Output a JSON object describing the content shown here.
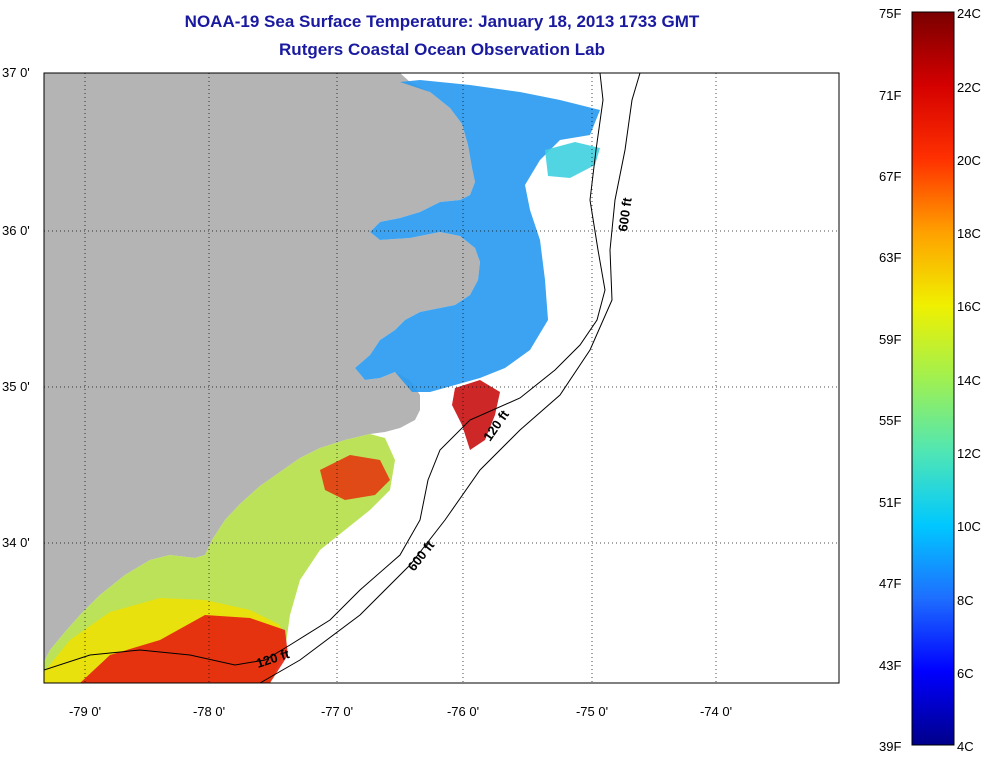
{
  "header": {
    "title": "NOAA-19 Sea Surface Temperature:  January 18, 2013 1733 GMT",
    "subtitle": "Rutgers Coastal Ocean Observation Lab"
  },
  "map": {
    "lat_labels": [
      "37 0'",
      "36 0'",
      "35 0'",
      "34 0'"
    ],
    "lon_labels": [
      "-79 0'",
      "-78 0'",
      "-77 0'",
      "-76 0'",
      "-75 0'",
      "-74 0'"
    ],
    "contour_labels": {
      "c600_north": "600 ft",
      "c600_south": "600 ft",
      "c120_north": "120 ft",
      "c120_south": "120 ft"
    },
    "colors": {
      "land": "#b4b4b4",
      "cloud": "#ffffff"
    }
  },
  "colorbar": {
    "fahrenheit_labels": [
      "75F",
      "71F",
      "67F",
      "63F",
      "59F",
      "55F",
      "51F",
      "47F",
      "43F",
      "39F"
    ],
    "celsius_labels": [
      "24C",
      "22C",
      "20C",
      "18C",
      "16C",
      "14C",
      "12C",
      "10C",
      "8C",
      "6C",
      "4C"
    ],
    "stops": [
      "#00008a",
      "#0000ff",
      "#1e6eff",
      "#00c8ff",
      "#50e6b4",
      "#a0f050",
      "#f0f000",
      "#ffa000",
      "#ff3000",
      "#d40000",
      "#7a0000"
    ]
  }
}
